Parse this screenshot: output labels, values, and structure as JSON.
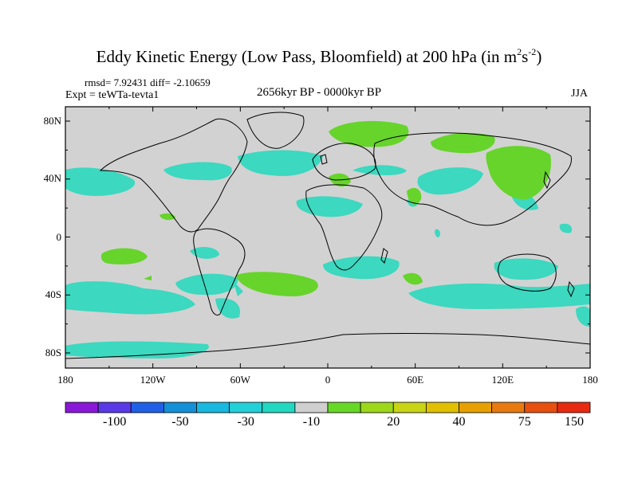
{
  "title": {
    "main": "Eddy Kinetic Energy (Low Pass, Bloomfield) at 200 hPa (in m",
    "sup1": "2",
    "mid": "s",
    "sup2": "-2",
    "end": ")"
  },
  "stats": "rmsd= 7.92431  diff= -2.10659",
  "experiment": "Expt = teWTa-tevta1",
  "period": "2656kyr BP - 0000kyr BP",
  "season": "JJA",
  "y_axis_labels": [
    "80N",
    "40N",
    "0",
    "40S",
    "80S"
  ],
  "x_axis_labels": [
    "180",
    "120W",
    "60W",
    "0",
    "60E",
    "120E",
    "180"
  ],
  "colorbar": {
    "colors": [
      "#8a18d8",
      "#5a3ae6",
      "#2060e6",
      "#1490d8",
      "#18b8e0",
      "#22d0d8",
      "#22d8c0",
      "#cfcfcf",
      "#66d826",
      "#9cd81a",
      "#c8d414",
      "#e0c000",
      "#e8a000",
      "#e87a10",
      "#e85010",
      "#e82a10"
    ],
    "labels": [
      "-100",
      "-50",
      "-30",
      "-10",
      "20",
      "40",
      "75",
      "150"
    ]
  },
  "map_colors": {
    "background": "#d2d2d2",
    "negative": "#3cd8c0",
    "positive": "#66d42a"
  }
}
